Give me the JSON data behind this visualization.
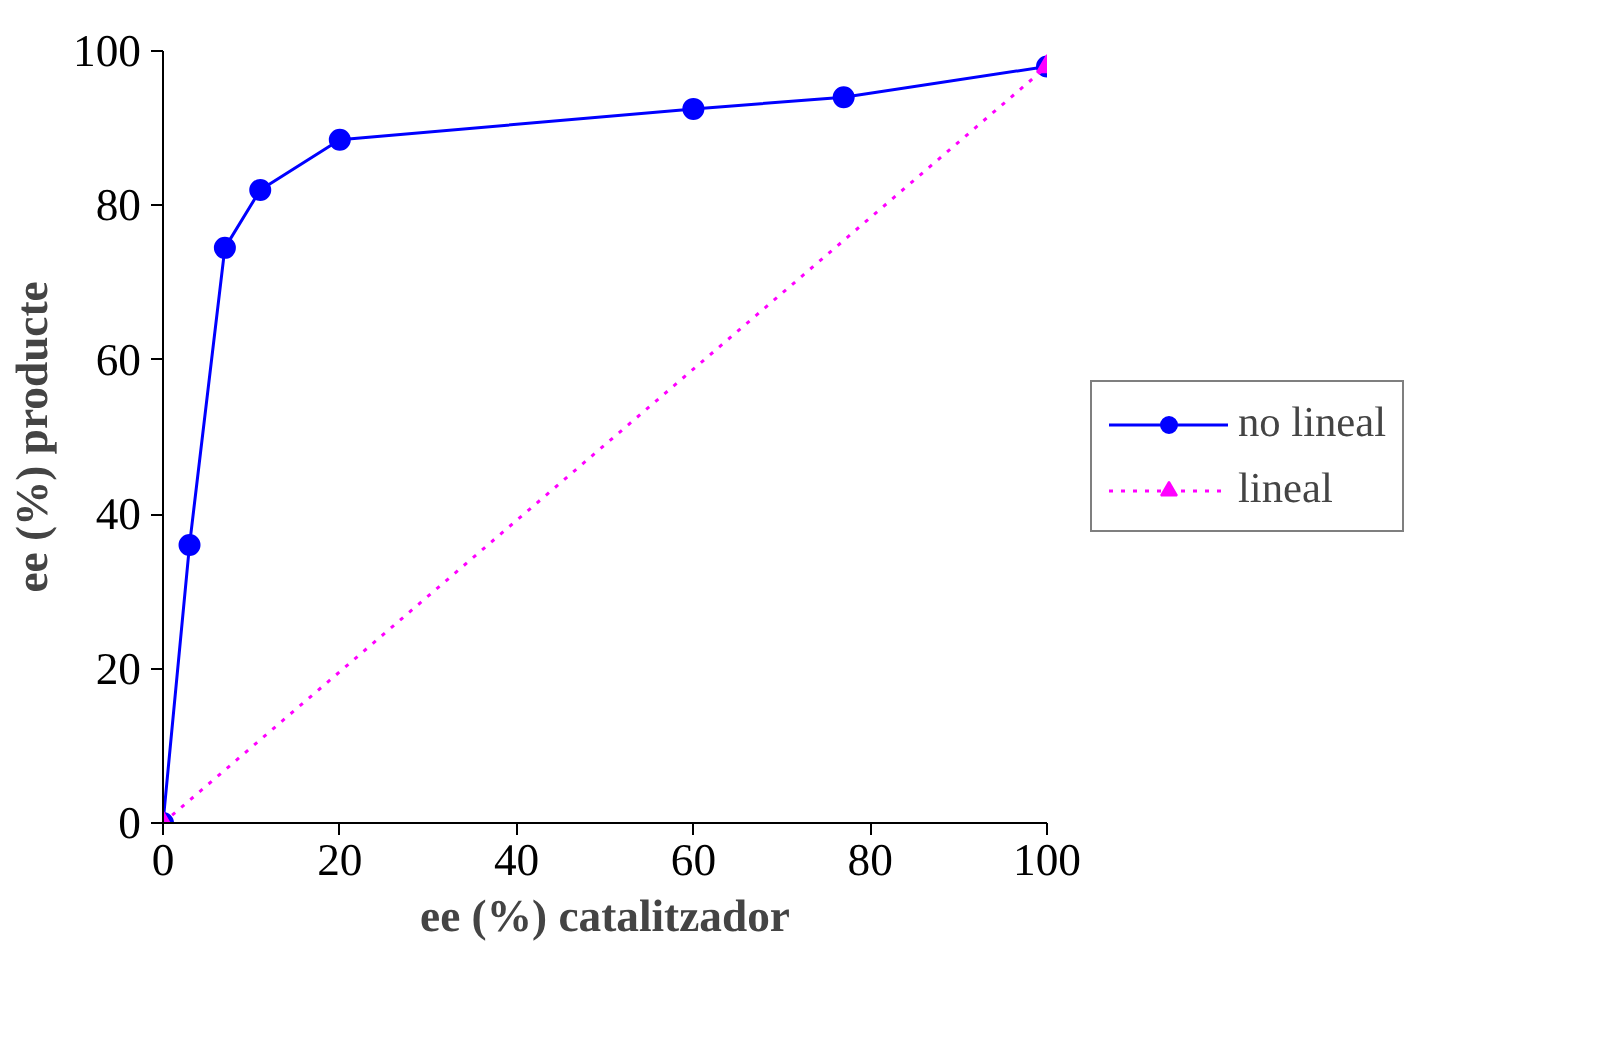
{
  "chart_data": {
    "type": "line",
    "xlabel": "ee (%) catalitzador",
    "ylabel": "ee (%) producte",
    "xlim": [
      0,
      100
    ],
    "ylim": [
      0,
      100
    ],
    "xticks": [
      0,
      20,
      40,
      60,
      80,
      100
    ],
    "yticks": [
      0,
      20,
      40,
      60,
      80,
      100
    ],
    "grid": false,
    "legend": "right",
    "series": [
      {
        "name": "no lineal",
        "color": "#0000ff",
        "marker": "circle",
        "line_style": "solid",
        "x": [
          0,
          3,
          7,
          11,
          20,
          60,
          77,
          100
        ],
        "values": [
          0,
          36,
          74.5,
          82,
          88.5,
          92.5,
          94,
          98
        ]
      },
      {
        "name": "lineal",
        "color": "#ff00ff",
        "marker": "triangle",
        "line_style": "dotted",
        "x": [
          0,
          100
        ],
        "values": [
          0,
          98
        ]
      }
    ]
  }
}
